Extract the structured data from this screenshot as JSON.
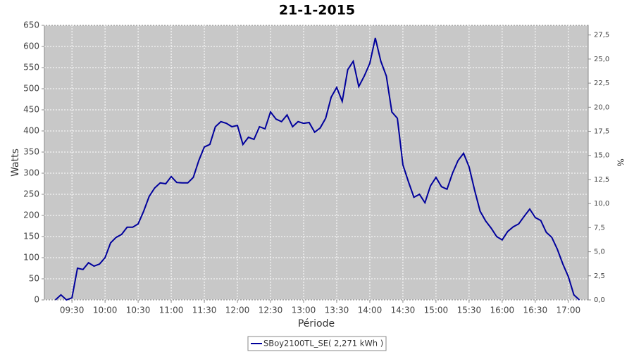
{
  "chart_data": {
    "type": "line",
    "title": "21-1-2015",
    "xlabel": "Période",
    "ylabel": "Watts",
    "y2label": "%",
    "x": [
      "09:15",
      "09:20",
      "09:25",
      "09:30",
      "09:35",
      "09:40",
      "09:45",
      "09:50",
      "09:55",
      "10:00",
      "10:05",
      "10:10",
      "10:15",
      "10:20",
      "10:25",
      "10:30",
      "10:35",
      "10:40",
      "10:45",
      "10:50",
      "10:55",
      "11:00",
      "11:05",
      "11:10",
      "11:15",
      "11:20",
      "11:25",
      "11:30",
      "11:35",
      "11:40",
      "11:45",
      "11:50",
      "11:55",
      "12:00",
      "12:05",
      "12:10",
      "12:15",
      "12:20",
      "12:25",
      "12:30",
      "12:35",
      "12:40",
      "12:45",
      "12:50",
      "12:55",
      "13:00",
      "13:05",
      "13:10",
      "13:15",
      "13:20",
      "13:25",
      "13:30",
      "13:35",
      "13:40",
      "13:45",
      "13:50",
      "13:55",
      "14:00",
      "14:05",
      "14:10",
      "14:15",
      "14:20",
      "14:25",
      "14:30",
      "14:35",
      "14:40",
      "14:45",
      "14:50",
      "14:55",
      "15:00",
      "15:05",
      "15:10",
      "15:15",
      "15:20",
      "15:25",
      "15:30",
      "15:35",
      "15:40",
      "15:45",
      "15:50",
      "15:55",
      "16:00",
      "16:05",
      "16:10",
      "16:15",
      "16:20",
      "16:25",
      "16:30",
      "16:35",
      "16:40",
      "16:45",
      "16:50",
      "16:55",
      "17:00",
      "17:05",
      "17:10"
    ],
    "series": [
      {
        "name": "SBoy2100TL_SE( 2,271 kWh )",
        "color": "#00009c",
        "values": [
          0,
          12,
          0,
          5,
          75,
          72,
          88,
          80,
          85,
          100,
          135,
          148,
          155,
          172,
          172,
          180,
          210,
          245,
          265,
          277,
          275,
          292,
          278,
          277,
          277,
          290,
          330,
          362,
          368,
          410,
          422,
          418,
          410,
          413,
          368,
          385,
          380,
          410,
          405,
          445,
          428,
          422,
          438,
          410,
          422,
          418,
          420,
          397,
          407,
          430,
          480,
          503,
          470,
          545,
          565,
          505,
          530,
          560,
          620,
          565,
          530,
          445,
          430,
          320,
          280,
          243,
          250,
          230,
          270,
          290,
          268,
          262,
          300,
          330,
          347,
          315,
          260,
          210,
          187,
          170,
          150,
          142,
          162,
          173,
          180,
          198,
          215,
          195,
          188,
          160,
          148,
          120,
          85,
          55,
          12,
          0
        ]
      }
    ],
    "xlim": [
      "09:05",
      "17:18"
    ],
    "xticks": [
      "09:30",
      "10:00",
      "10:30",
      "11:00",
      "11:30",
      "12:00",
      "12:30",
      "13:00",
      "13:30",
      "14:00",
      "14:30",
      "15:00",
      "15:30",
      "16:00",
      "16:30",
      "17:00"
    ],
    "ylim": [
      0,
      650
    ],
    "yticks": [
      0,
      50,
      100,
      150,
      200,
      250,
      300,
      350,
      400,
      450,
      500,
      550,
      600,
      650
    ],
    "y2lim": [
      0,
      28.5
    ],
    "y2ticks": [
      {
        "value": 0,
        "label": "0,0"
      },
      {
        "value": 2.5,
        "label": "2,5"
      },
      {
        "value": 5,
        "label": "5,0"
      },
      {
        "value": 7.5,
        "label": "7,5"
      },
      {
        "value": 10,
        "label": "10,0"
      },
      {
        "value": 12.5,
        "label": "12,5"
      },
      {
        "value": 15,
        "label": "15,0"
      },
      {
        "value": 17.5,
        "label": "17,5"
      },
      {
        "value": 20,
        "label": "20,0"
      },
      {
        "value": 22.5,
        "label": "22,5"
      },
      {
        "value": 25,
        "label": "25,0"
      },
      {
        "value": 27.5,
        "label": "27,5"
      }
    ],
    "grid": true,
    "legend": "bottom"
  }
}
